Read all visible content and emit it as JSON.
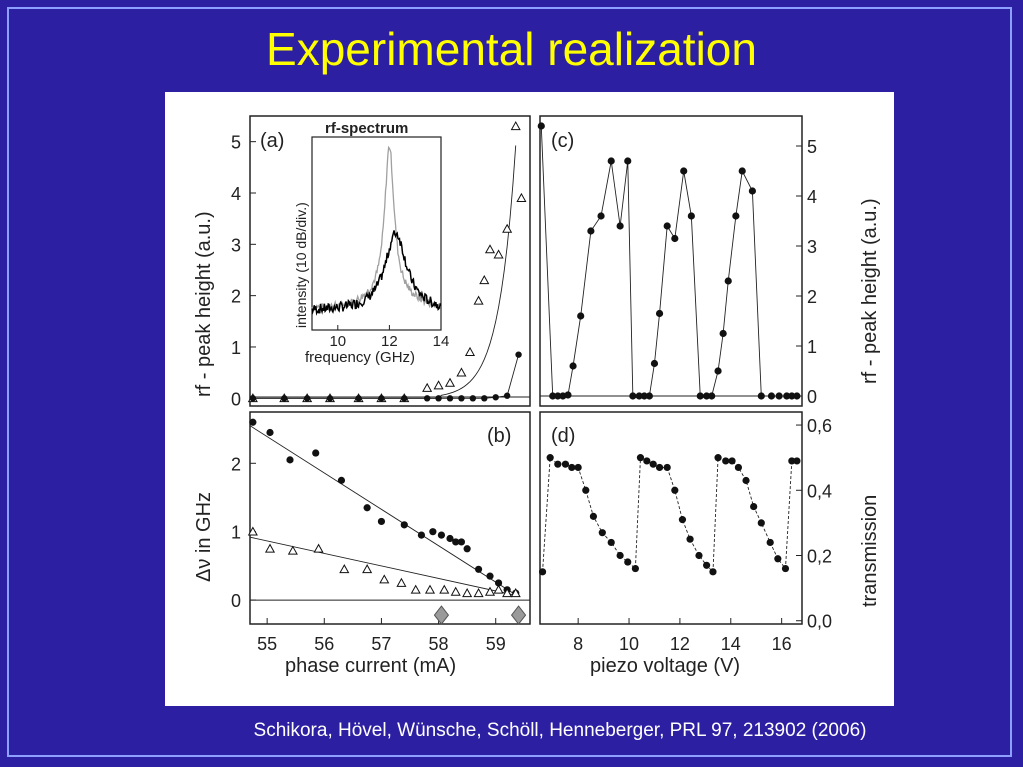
{
  "slide": {
    "title": "Experimental realization",
    "citation": "Schikora, Hövel, Wünsche, Schöll, Henneberger, PRL 97, 213902  (2006)",
    "colors": {
      "background": "#2c1fa2",
      "title": "#ffff00",
      "border": "#8ea0ff"
    }
  },
  "chart_data": [
    {
      "panel": "(a)",
      "type": "scatter",
      "ylabel": "rf - peak height (a.u.)",
      "xlim": [
        54.7,
        59.6
      ],
      "ylim": [
        -0.15,
        5.5
      ],
      "yticks": [
        "0",
        "1",
        "2",
        "3",
        "4",
        "5"
      ],
      "series": [
        {
          "marker": "open-triangle",
          "x": [
            54.75,
            55.3,
            55.7,
            56.1,
            56.6,
            57.0,
            57.4,
            57.8,
            58.0,
            58.2,
            58.4,
            58.55,
            58.7,
            58.8,
            58.9,
            59.05,
            59.2,
            59.35,
            59.45
          ],
          "y": [
            0,
            0,
            0,
            0,
            0,
            0,
            0,
            0.2,
            0.25,
            0.3,
            0.5,
            0.9,
            1.9,
            2.3,
            2.9,
            2.8,
            3.3,
            5.3,
            3.9
          ]
        },
        {
          "marker": "filled-circle",
          "x": [
            54.75,
            55.3,
            55.7,
            56.1,
            56.6,
            57.0,
            57.4,
            57.8,
            58.0,
            58.2,
            58.4,
            58.6,
            58.8,
            59.0,
            59.2,
            59.4
          ],
          "y": [
            0,
            0,
            0,
            0,
            0,
            0,
            0,
            0,
            0,
            0,
            0,
            0,
            0,
            0.02,
            0.05,
            0.85
          ]
        }
      ]
    },
    {
      "panel": "inset",
      "type": "line",
      "title": "rf-spectrum",
      "xlabel": "frequency (GHz)",
      "ylabel": "intensity (10 dB/div.)",
      "xlim": [
        9,
        14
      ],
      "xticks": [
        "10",
        "12",
        "14"
      ],
      "series": [
        {
          "color": "#a0a0a0",
          "peak_x": 12.0
        },
        {
          "color": "#000000",
          "peak_x": 12.25
        }
      ]
    },
    {
      "panel": "(b)",
      "type": "scatter",
      "ylabel": "Δν in GHz",
      "xlabel": "phase current (mA)",
      "xlim": [
        54.7,
        59.6
      ],
      "ylim": [
        -0.35,
        2.75
      ],
      "xticks": [
        "55",
        "56",
        "57",
        "58",
        "59"
      ],
      "yticks": [
        "0",
        "1",
        "2"
      ],
      "series": [
        {
          "marker": "filled-circle",
          "x": [
            54.75,
            55.05,
            55.4,
            55.85,
            56.3,
            56.75,
            57.0,
            57.4,
            57.7,
            57.9,
            58.05,
            58.2,
            58.3,
            58.4,
            58.5,
            58.7,
            58.9,
            59.05,
            59.2,
            59.35
          ],
          "y": [
            2.6,
            2.45,
            2.05,
            2.15,
            1.75,
            1.35,
            1.15,
            1.1,
            0.95,
            1.0,
            0.95,
            0.9,
            0.85,
            0.85,
            0.75,
            0.45,
            0.35,
            0.25,
            0.15,
            0.1
          ]
        },
        {
          "marker": "open-triangle",
          "x": [
            54.75,
            55.05,
            55.45,
            55.9,
            56.35,
            56.75,
            57.05,
            57.35,
            57.6,
            57.85,
            58.1,
            58.3,
            58.5,
            58.7,
            58.9,
            59.05,
            59.2,
            59.35
          ],
          "y": [
            1.0,
            0.75,
            0.72,
            0.75,
            0.45,
            0.45,
            0.3,
            0.25,
            0.15,
            0.15,
            0.15,
            0.12,
            0.1,
            0.1,
            0.12,
            0.15,
            0.1,
            0.1
          ]
        }
      ],
      "markers_below_axis": [
        58.05,
        59.4
      ]
    },
    {
      "panel": "(c)",
      "type": "line",
      "ylabel": "rf - peak height (a.u.)",
      "xlim": [
        6.5,
        16.8
      ],
      "ylim": [
        -0.2,
        5.6
      ],
      "yticks": [
        "0",
        "1",
        "2",
        "3",
        "4",
        "5"
      ],
      "series": [
        {
          "marker": "filled-circle",
          "x": [
            6.55,
            7.0,
            7.2,
            7.4,
            7.6,
            7.8,
            8.1,
            8.5,
            8.9,
            9.3,
            9.65,
            9.95,
            10.15,
            10.4,
            10.6,
            10.8,
            11.0,
            11.2,
            11.5,
            11.8,
            12.15,
            12.45,
            12.8,
            13.05,
            13.25,
            13.5,
            13.7,
            13.9,
            14.2,
            14.45,
            14.85,
            15.2,
            15.6,
            15.9,
            16.2,
            16.4,
            16.6
          ],
          "y": [
            5.4,
            0,
            0,
            0,
            0.02,
            0.6,
            1.6,
            3.3,
            3.6,
            4.7,
            3.4,
            4.7,
            0,
            0,
            0,
            0,
            0.65,
            1.65,
            3.4,
            3.15,
            4.5,
            3.6,
            0,
            0,
            0,
            0.5,
            1.25,
            2.3,
            3.6,
            4.5,
            4.1,
            0,
            0,
            0,
            0,
            0,
            0
          ]
        }
      ]
    },
    {
      "panel": "(d)",
      "type": "line",
      "ylabel": "transmission",
      "xlabel": "piezo voltage (V)",
      "xlim": [
        6.5,
        16.8
      ],
      "ylim": [
        -0.01,
        0.64
      ],
      "xticks": [
        "8",
        "10",
        "12",
        "14",
        "16"
      ],
      "yticks": [
        "0,0",
        "0,2",
        "0,4",
        "0,6"
      ],
      "series": [
        {
          "marker": "filled-circle",
          "x": [
            6.6,
            6.9,
            7.2,
            7.5,
            7.75,
            8.0,
            8.3,
            8.6,
            8.95,
            9.3,
            9.65,
            9.95,
            10.25,
            10.45,
            10.7,
            10.95,
            11.2,
            11.5,
            11.8,
            12.1,
            12.4,
            12.75,
            13.05,
            13.3,
            13.5,
            13.8,
            14.05,
            14.3,
            14.6,
            14.9,
            15.2,
            15.55,
            15.85,
            16.15,
            16.4,
            16.6
          ],
          "y": [
            0.15,
            0.5,
            0.48,
            0.48,
            0.47,
            0.47,
            0.4,
            0.32,
            0.27,
            0.24,
            0.2,
            0.18,
            0.16,
            0.5,
            0.49,
            0.48,
            0.47,
            0.47,
            0.4,
            0.31,
            0.25,
            0.2,
            0.17,
            0.15,
            0.5,
            0.49,
            0.49,
            0.47,
            0.43,
            0.35,
            0.3,
            0.24,
            0.19,
            0.16,
            0.49,
            0.49
          ]
        }
      ]
    }
  ],
  "axes": {
    "a_label": "(a)",
    "b_label": "(b)",
    "c_label": "(c)",
    "d_label": "(d)",
    "b_xlabel": "phase current (mA)",
    "d_xlabel": "piezo voltage (V)",
    "a_ylabel": "rf - peak height (a.u.)",
    "b_ylabel": "Δν in GHz",
    "c_ylabel": "rf - peak height (a.u.)",
    "d_ylabel": "transmission",
    "inset_title": "rf-spectrum",
    "inset_xlabel": "frequency (GHz)",
    "inset_ylabel": "intensity (10 dB/div.)"
  }
}
